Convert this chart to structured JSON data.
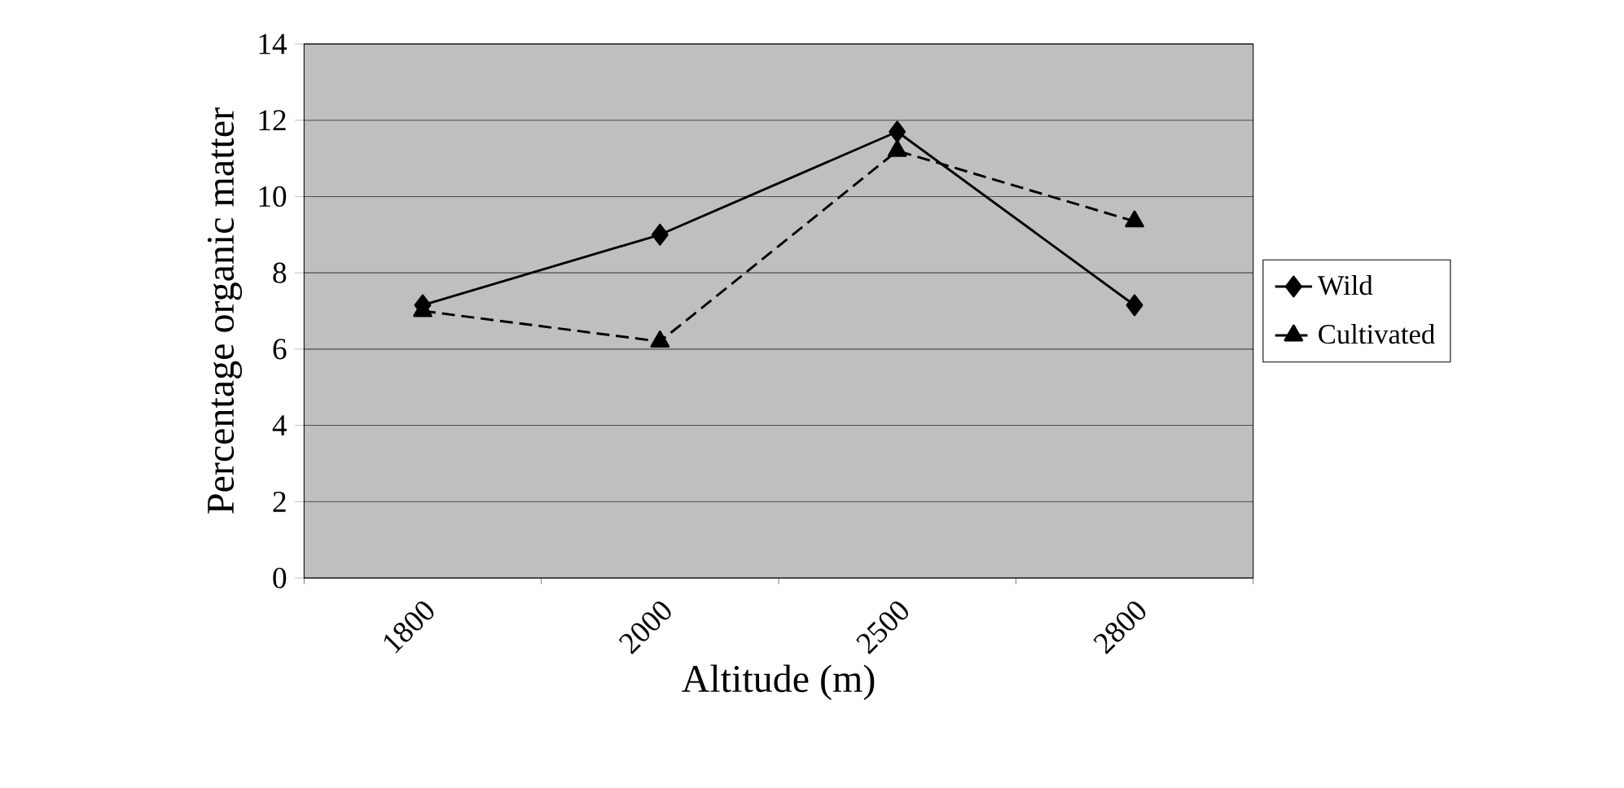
{
  "chart_data": {
    "type": "line",
    "xlabel": "Altitude (m)",
    "ylabel": "Percentage organic matter",
    "categories": [
      "1800",
      "2000",
      "2500",
      "2800"
    ],
    "series": [
      {
        "name": "Wild",
        "color": "#000000",
        "values": [
          7.15,
          9.0,
          11.7,
          7.15
        ],
        "marker": "diamond",
        "line_style": "solid"
      },
      {
        "name": "Cultivated",
        "color": "#000000",
        "values": [
          7.0,
          6.2,
          11.2,
          9.35
        ],
        "marker": "triangle",
        "line_style": "dashed"
      }
    ],
    "ylim": [
      0,
      14
    ],
    "yticks": [
      0,
      2,
      4,
      6,
      8,
      10,
      12,
      14
    ],
    "grid": "y",
    "legend": "right"
  }
}
